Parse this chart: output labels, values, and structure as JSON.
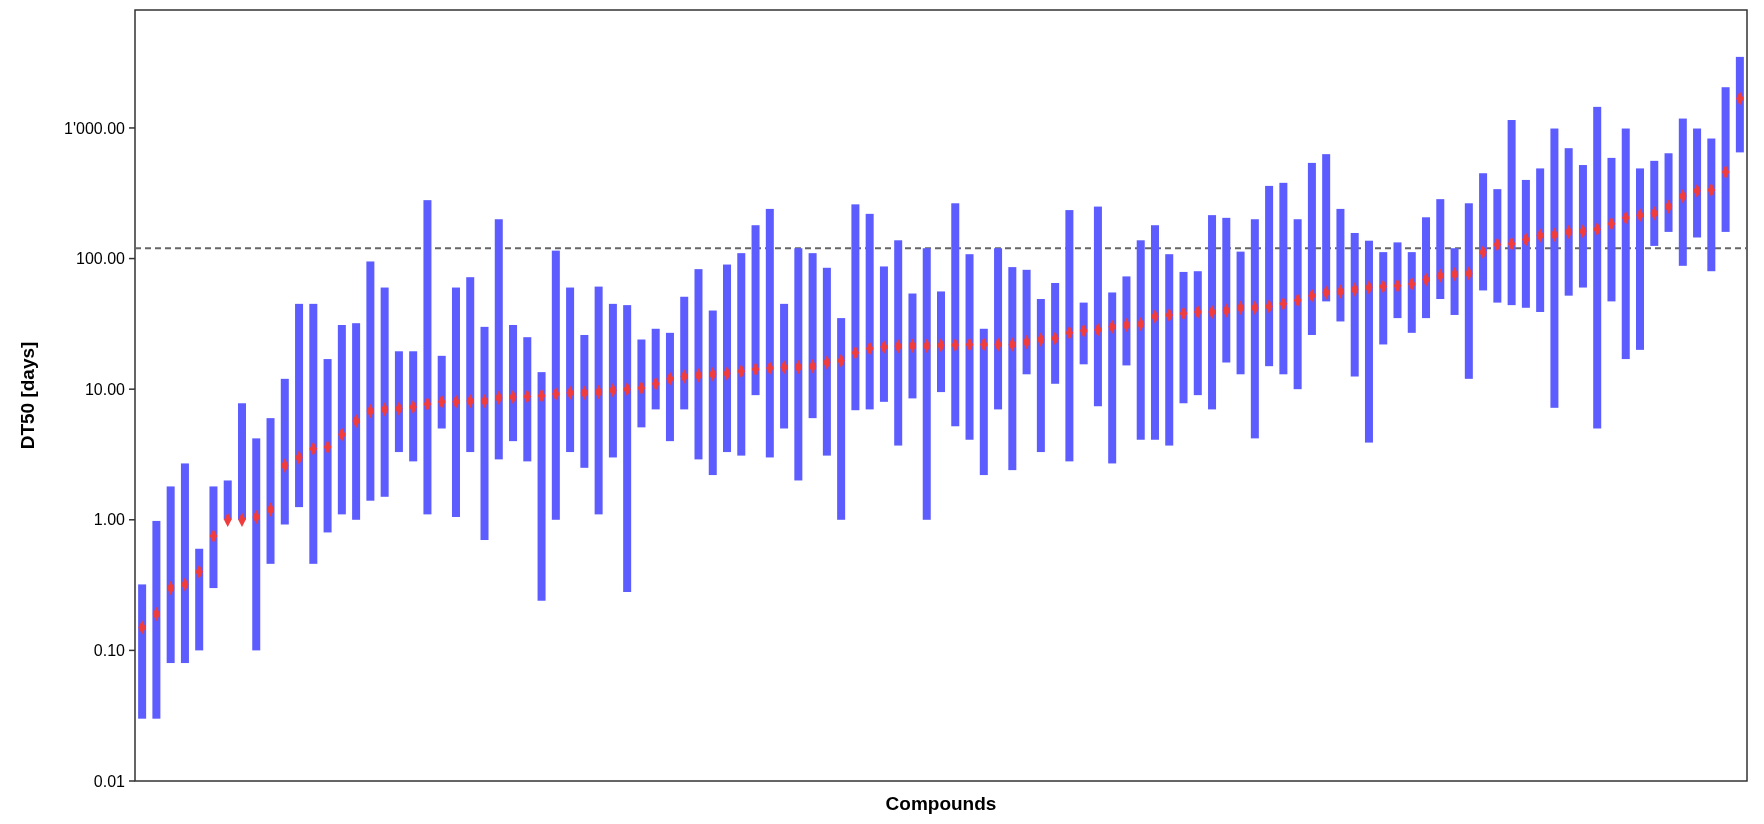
{
  "chart_data": {
    "type": "bar",
    "xlabel": "Compounds",
    "ylabel": "DT50 [days]",
    "log": "y",
    "grid": false,
    "categories": [
      null,
      null,
      null,
      null,
      null,
      null,
      null,
      null,
      null,
      null,
      null,
      null,
      null,
      null,
      null,
      null,
      null,
      null,
      null,
      null,
      null,
      null,
      null,
      null,
      null,
      null,
      null,
      null,
      null,
      null,
      null,
      null,
      null,
      null,
      null,
      null,
      null,
      null,
      null,
      null,
      null,
      null,
      null,
      null,
      null,
      null,
      null,
      null,
      null,
      null,
      null,
      null,
      null,
      null,
      null,
      null,
      null,
      null,
      null,
      null,
      null,
      null,
      null,
      null,
      null,
      null,
      null,
      null,
      null,
      null,
      null,
      null,
      null,
      null,
      null,
      null,
      null,
      null,
      null,
      null,
      null,
      null,
      null,
      null,
      null,
      null,
      null,
      null,
      null,
      null,
      null,
      null,
      null,
      null,
      null,
      null,
      null,
      null,
      null,
      null,
      null,
      null,
      null,
      null,
      null,
      null,
      null,
      null,
      null,
      null,
      null,
      null,
      null
    ],
    "ylim": [
      0.01,
      8000
    ],
    "yticks": [
      {
        "value": 0.01,
        "label": "0.01"
      },
      {
        "value": 0.1,
        "label": "0.10"
      },
      {
        "value": 1,
        "label": "1.00"
      },
      {
        "value": 10,
        "label": "10.00"
      },
      {
        "value": 100,
        "label": "100.00"
      },
      {
        "value": 1000,
        "label": "1'000.00"
      }
    ],
    "ref_lines": [
      {
        "axis": "y",
        "value": 120,
        "color": "#666666",
        "line_style": "dashed"
      }
    ],
    "series": [
      {
        "type": "bar",
        "color": "#5c5cff",
        "base": [
          0.03,
          0.03,
          0.08,
          0.08,
          0.1,
          0.3,
          1.0,
          1.0,
          0.1,
          0.46,
          0.92,
          1.25,
          0.46,
          0.8,
          1.1,
          1,
          1.4,
          1.5,
          3.3,
          2.8,
          1.1,
          5,
          1.05,
          3.3,
          0.7,
          2.9,
          4,
          2.8,
          0.24,
          1,
          3.3,
          2.5,
          1.1,
          3,
          0.28,
          5.1,
          7,
          4,
          7,
          2.9,
          2.2,
          3.3,
          3.1,
          9,
          3,
          5,
          2,
          6,
          3.1,
          1,
          6.9,
          7,
          8,
          3.7,
          8.5,
          1,
          9.5,
          5.2,
          4.1,
          2.2,
          7,
          2.4,
          13,
          3.3,
          11,
          2.8,
          15.5,
          7.4,
          2.7,
          15.2,
          4.1,
          4.1,
          3.7,
          7.8,
          9,
          7,
          16,
          13,
          4.2,
          15,
          13,
          10,
          26,
          47,
          33,
          12.5,
          3.9,
          22,
          35,
          27,
          35,
          49,
          37,
          12,
          57,
          46,
          44,
          42,
          39,
          7.2,
          52,
          60,
          5,
          47,
          17,
          20,
          125,
          160,
          88,
          145,
          80,
          160,
          650
        ],
        "values": [
          0.29,
          0.95,
          1.72,
          2.62,
          0.5,
          1.5,
          1.0,
          6.8,
          4.1,
          5.54,
          11.08,
          43.75,
          44.54,
          16.2,
          29.9,
          31,
          93.6,
          58.5,
          16.2,
          16.7,
          278.9,
          13,
          58.95,
          68.7,
          29.3,
          197.1,
          27,
          22.2,
          13.26,
          114,
          56.7,
          23.5,
          59.9,
          42,
          43.72,
          18.9,
          22,
          23,
          44,
          80.1,
          37.8,
          86.7,
          106.9,
          171,
          237,
          40,
          118,
          104,
          81.9,
          34,
          253.1,
          213,
          79,
          134.3,
          45.5,
          119,
          46.5,
          259.8,
          103.9,
          26.8,
          113,
          83.6,
          69,
          45.7,
          54,
          232.2,
          30.5,
          242.6,
          52.3,
          57.8,
          133.9,
          175.9,
          104.3,
          71.2,
          71,
          208,
          189,
          100,
          195.8,
          345,
          367,
          190,
          514,
          583,
          207,
          144.5,
          133.1,
          90,
          98,
          85,
          172,
          236,
          83,
          253,
          393,
          294,
          1106,
          358,
          451,
          982.8,
          648,
          460,
          1445,
          543,
          973,
          470,
          435,
          480,
          1092,
          845,
          750,
          1890,
          2850
        ]
      },
      {
        "type": "scatter",
        "color": "#f03c3c",
        "marker": "diamond",
        "values": [
          0.15,
          0.19,
          0.3,
          0.32,
          0.4,
          0.75,
          1.0,
          1.0,
          1.05,
          1.2,
          2.6,
          3.0,
          3.5,
          3.6,
          4.5,
          5.7,
          6.8,
          7.0,
          7.1,
          7.3,
          7.7,
          8.0,
          8.0,
          8.1,
          8.1,
          8.6,
          8.7,
          8.8,
          8.9,
          9.2,
          9.4,
          9.4,
          9.5,
          9.8,
          10,
          10.2,
          11,
          12,
          12.5,
          12.8,
          13,
          13.2,
          13.7,
          14.2,
          14.5,
          14.7,
          14.8,
          15,
          16,
          16.5,
          19,
          20.5,
          21,
          21.3,
          21.5,
          21.5,
          21.7,
          21.8,
          22,
          22,
          22,
          22,
          23,
          24,
          24.5,
          27,
          28,
          28.5,
          30,
          31,
          31.5,
          36,
          37,
          38,
          39,
          39,
          40,
          42,
          42,
          43,
          45,
          48,
          52,
          55,
          56,
          58,
          60,
          61,
          62,
          64,
          69,
          74,
          76,
          77,
          112,
          128,
          130,
          140,
          150,
          152,
          160,
          162,
          168,
          185,
          205,
          215,
          222,
          250,
          300,
          330,
          335,
          460,
          1680
        ]
      }
    ]
  }
}
